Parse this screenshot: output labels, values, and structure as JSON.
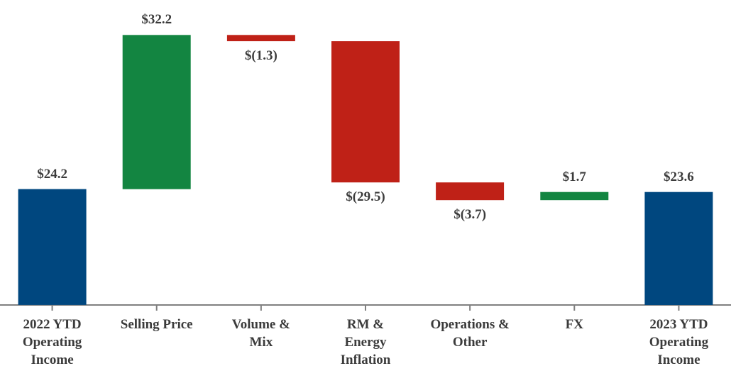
{
  "chart_data": {
    "type": "bar",
    "subtype": "waterfall",
    "title": "",
    "xlabel": "",
    "ylabel": "",
    "ylim": [
      0,
      60
    ],
    "grid": false,
    "legend": "none",
    "categories": [
      "2022 YTD\nOperating\nIncome",
      "Selling Price",
      "Volume &\nMix",
      "RM &\nEnergy\nInflation",
      "Operations &\nOther",
      "FX",
      "2023 YTD\nOperating\nIncome"
    ],
    "values": [
      24.2,
      32.2,
      -1.3,
      -29.5,
      -3.7,
      1.7,
      23.6
    ],
    "kinds": [
      "total",
      "delta",
      "delta",
      "delta",
      "delta",
      "delta",
      "total"
    ],
    "value_labels": [
      "$24.2",
      "$32.2",
      "$(1.3)",
      "$(29.5)",
      "$(3.7)",
      "$1.7",
      "$23.6"
    ],
    "colors": {
      "total": "#00477f",
      "increase": "#138541",
      "decrease": "#bf2117",
      "axis": "#808080",
      "text": "#3b3b3b"
    }
  }
}
